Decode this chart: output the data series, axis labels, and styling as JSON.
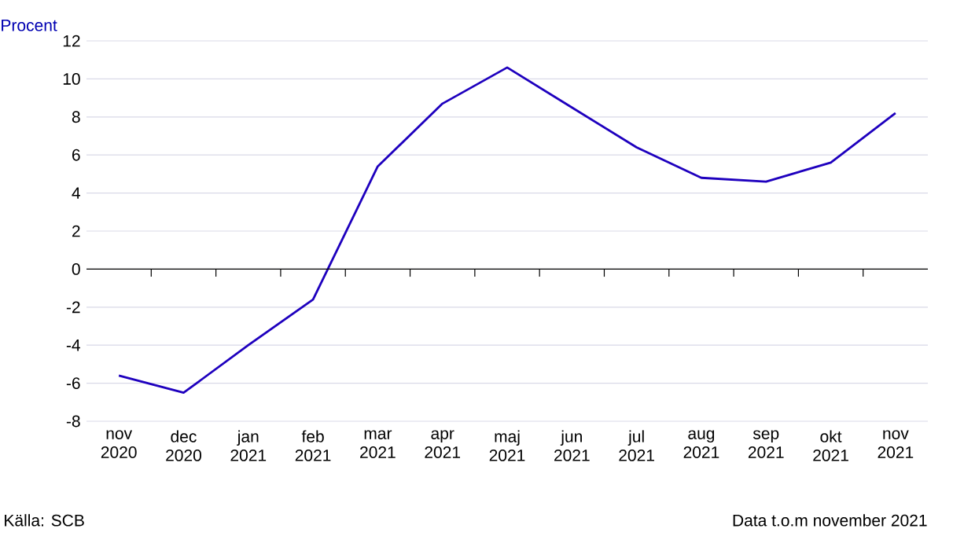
{
  "chart_data": {
    "type": "line",
    "ylabel": "Procent",
    "categories": [
      "nov 2020",
      "dec 2020",
      "jan 2021",
      "feb 2021",
      "mar 2021",
      "apr 2021",
      "maj 2021",
      "jun 2021",
      "jul 2021",
      "aug 2021",
      "sep 2021",
      "okt 2021",
      "nov 2021"
    ],
    "series": [
      {
        "color": "#1e00be",
        "values": [
          -5.6,
          -6.5,
          -4.0,
          -1.6,
          5.4,
          8.7,
          10.6,
          8.5,
          6.4,
          4.8,
          4.6,
          5.6,
          8.2
        ]
      }
    ],
    "ylim": [
      -8,
      12
    ],
    "yticks": [
      -8,
      -6,
      -4,
      -2,
      0,
      2,
      4,
      6,
      8,
      10,
      12
    ],
    "grid": "y",
    "annotations": [
      "Källa: SCB",
      "Data t.o.m november 2021"
    ]
  }
}
